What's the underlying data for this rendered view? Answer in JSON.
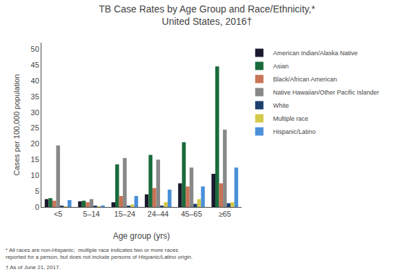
{
  "chart_data": {
    "type": "bar",
    "title": "TB Case Rates by Age Group and Race/Ethnicity,*",
    "subtitle": "United States, 2016†",
    "xlabel": "Age group (yrs)",
    "ylabel": "Cases per 100,000 population",
    "categories": [
      "<5",
      "5–14",
      "15–24",
      "24–44",
      "45–65",
      "≥65"
    ],
    "series": [
      {
        "name": "American Indian/Alaska Native",
        "color": "#1a1a2e",
        "values": [
          2.5,
          1.8,
          1.5,
          4.0,
          7.5,
          10.5
        ]
      },
      {
        "name": "Asian",
        "color": "#1a6b3c",
        "values": [
          2.8,
          2.0,
          13.5,
          16.5,
          20.5,
          44.5
        ]
      },
      {
        "name": "Black/African American",
        "color": "#c87455",
        "values": [
          2.0,
          1.5,
          3.5,
          6.0,
          6.5,
          7.5
        ]
      },
      {
        "name": "Native Hawaiian/Other Pacific Islander",
        "color": "#888888",
        "values": [
          19.5,
          2.5,
          15.5,
          15.0,
          12.5,
          24.5
        ]
      },
      {
        "name": "White",
        "color": "#1c3f6e",
        "values": [
          0.3,
          0.4,
          0.4,
          0.3,
          1.0,
          1.2
        ]
      },
      {
        "name": "Multiple race",
        "color": "#d4c94a",
        "values": [
          0.2,
          0.2,
          0.8,
          1.5,
          2.5,
          1.5
        ]
      },
      {
        "name": "Hispanic/Latino",
        "color": "#4a90d9",
        "values": [
          2.2,
          0.5,
          3.5,
          5.5,
          6.5,
          12.5
        ]
      }
    ],
    "ylim": [
      0,
      52
    ],
    "yticks": [
      0,
      5,
      10,
      15,
      20,
      25,
      30,
      35,
      40,
      45,
      50
    ],
    "annotations": [
      "* All races are non-Hispanic;  multiple race indicates two or more races reported for a person, but does not include persons of Hispanic/Latino origin.",
      "† As of June 21, 2017."
    ],
    "grid": false,
    "legend": "right"
  }
}
